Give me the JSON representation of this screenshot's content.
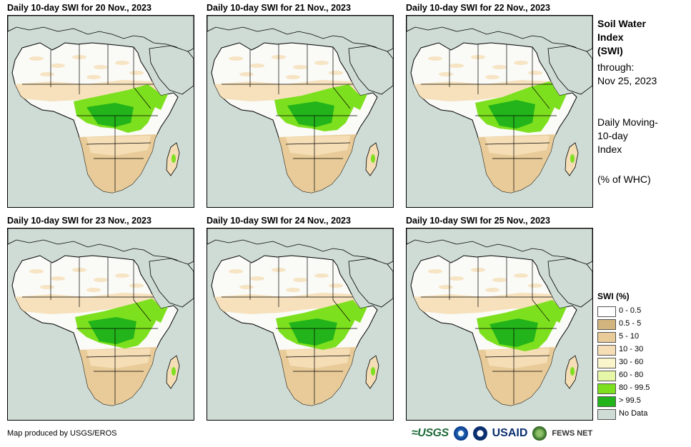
{
  "panels": [
    {
      "title": "Daily 10-day  SWI for 20 Nov., 2023"
    },
    {
      "title": "Daily 10-day  SWI for 21 Nov., 2023"
    },
    {
      "title": "Daily 10-day  SWI for 22 Nov., 2023"
    },
    {
      "title": "Daily 10-day  SWI for 23 Nov., 2023"
    },
    {
      "title": "Daily 10-day  SWI for 24 Nov., 2023"
    },
    {
      "title": "Daily 10-day  SWI for 25 Nov., 2023"
    }
  ],
  "side": {
    "title_line1": "Soil Water",
    "title_line2": "Index",
    "title_line3": "(SWI)",
    "through_label": "through:",
    "through_date": "Nov 25, 2023",
    "desc_line1": "Daily Moving-",
    "desc_line2": "10-day",
    "desc_line3": "Index",
    "unit": "(% of WHC)"
  },
  "legend": {
    "title": "SWI (%)",
    "items": [
      {
        "label": "0 - 0.5",
        "color": "#ffffff"
      },
      {
        "label": "0.5 - 5",
        "color": "#d2b47e"
      },
      {
        "label": "5 - 10",
        "color": "#e8cb98"
      },
      {
        "label": "10 - 30",
        "color": "#f5deb6"
      },
      {
        "label": "30 - 60",
        "color": "#fbf5cc"
      },
      {
        "label": "60 - 80",
        "color": "#e6f7a8"
      },
      {
        "label": "80 - 99.5",
        "color": "#7de01e"
      },
      {
        "label": "> 99.5",
        "color": "#22b41a"
      },
      {
        "label": "No Data",
        "color": "#cfdcd5"
      }
    ]
  },
  "credit": "Map produced by USGS/EROS",
  "logos": {
    "usgs": "≈USGS",
    "usaid": "USAID",
    "fews": "FEWS NET"
  },
  "colors": {
    "ocean": "#cfdcd5",
    "land_dry": "#fafaf6",
    "land_tan": "#e8cb98",
    "land_light": "#f5deb6",
    "wet": "#7de01e",
    "very_wet": "#22b41a"
  }
}
